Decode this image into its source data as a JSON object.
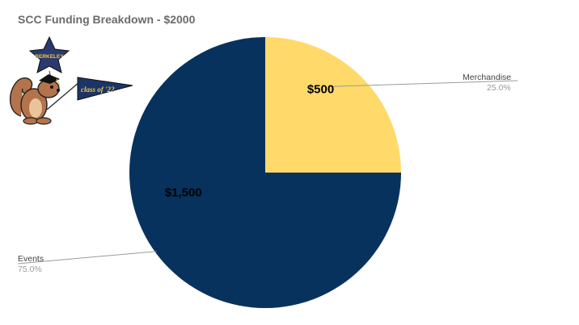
{
  "chart_data": {
    "type": "pie",
    "title": "SCC Funding Breakdown - $2000",
    "slices": [
      {
        "label": "Merchandise",
        "value": 500,
        "percent_label": "25.0%",
        "data_label": "$500",
        "color": "#FFDA6B"
      },
      {
        "label": "Events",
        "value": 1500,
        "percent_label": "75.0%",
        "data_label": "$1,500",
        "color": "#07325D"
      }
    ],
    "legend": "callouts"
  },
  "decoration": {
    "star_text": "BERKELEY",
    "pennant_text": "class of '22"
  }
}
